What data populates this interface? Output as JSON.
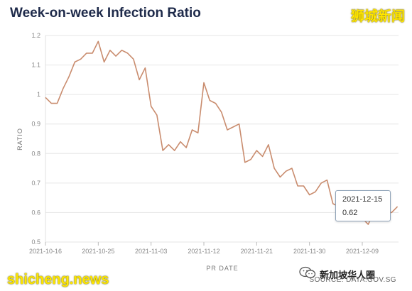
{
  "header": {
    "title": "Week-on-week Infection Ratio",
    "watermark_top": "狮城新闻"
  },
  "footer": {
    "source": "SOURCE: DATA.GOV.SG",
    "watermark_left": "shicheng.news",
    "watermark_right": "新加坡华人圈"
  },
  "tooltip": {
    "date": "2021-12-15",
    "value": "0.62"
  },
  "colors": {
    "line": "#c98c6e",
    "title": "#1e2a4a",
    "grid": "#e6e6e6",
    "watermark": "#ffe600"
  },
  "chart_data": {
    "type": "line",
    "title": "Week-on-week Infection Ratio",
    "xlabel": "PR DATE",
    "ylabel": "RATIO",
    "ylim": [
      0.5,
      1.2
    ],
    "yticks": [
      0.5,
      0.6,
      0.7,
      0.8,
      0.9,
      1,
      1.1,
      1.2
    ],
    "ytick_labels": [
      "0.5",
      "0.6",
      "0.7",
      "0.8",
      "0.9",
      "1",
      "1.1",
      "1.2"
    ],
    "xticks": [
      "2021-10-16",
      "2021-10-25",
      "2021-11-03",
      "2021-11-12",
      "2021-11-21",
      "2021-11-30",
      "2021-12-09"
    ],
    "grid": true,
    "x_start": "2021-10-16",
    "x": [
      "2021-10-16",
      "2021-10-17",
      "2021-10-18",
      "2021-10-19",
      "2021-10-20",
      "2021-10-21",
      "2021-10-22",
      "2021-10-23",
      "2021-10-24",
      "2021-10-25",
      "2021-10-26",
      "2021-10-27",
      "2021-10-28",
      "2021-10-29",
      "2021-10-30",
      "2021-10-31",
      "2021-11-01",
      "2021-11-02",
      "2021-11-03",
      "2021-11-04",
      "2021-11-05",
      "2021-11-06",
      "2021-11-07",
      "2021-11-08",
      "2021-11-09",
      "2021-11-10",
      "2021-11-11",
      "2021-11-12",
      "2021-11-13",
      "2021-11-14",
      "2021-11-15",
      "2021-11-16",
      "2021-11-17",
      "2021-11-18",
      "2021-11-19",
      "2021-11-20",
      "2021-11-21",
      "2021-11-22",
      "2021-11-23",
      "2021-11-24",
      "2021-11-25",
      "2021-11-26",
      "2021-11-27",
      "2021-11-28",
      "2021-11-29",
      "2021-11-30",
      "2021-12-01",
      "2021-12-02",
      "2021-12-03",
      "2021-12-04",
      "2021-12-05",
      "2021-12-06",
      "2021-12-07",
      "2021-12-08",
      "2021-12-09",
      "2021-12-10",
      "2021-12-11",
      "2021-12-12",
      "2021-12-13",
      "2021-12-14",
      "2021-12-15"
    ],
    "series": [
      {
        "values": [
          0.99,
          0.97,
          0.97,
          1.02,
          1.06,
          1.11,
          1.12,
          1.14,
          1.14,
          1.18,
          1.11,
          1.15,
          1.13,
          1.15,
          1.14,
          1.12,
          1.05,
          1.09,
          0.96,
          0.93,
          0.81,
          0.83,
          0.81,
          0.84,
          0.82,
          0.88,
          0.87,
          1.04,
          0.98,
          0.97,
          0.94,
          0.88,
          0.89,
          0.9,
          0.77,
          0.78,
          0.81,
          0.79,
          0.83,
          0.75,
          0.72,
          0.74,
          0.75,
          0.69,
          0.69,
          0.66,
          0.67,
          0.7,
          0.71,
          0.63,
          0.62,
          0.63,
          0.6,
          0.59,
          0.58,
          0.56,
          0.6,
          0.63,
          0.6,
          0.6,
          0.62
        ]
      }
    ]
  }
}
